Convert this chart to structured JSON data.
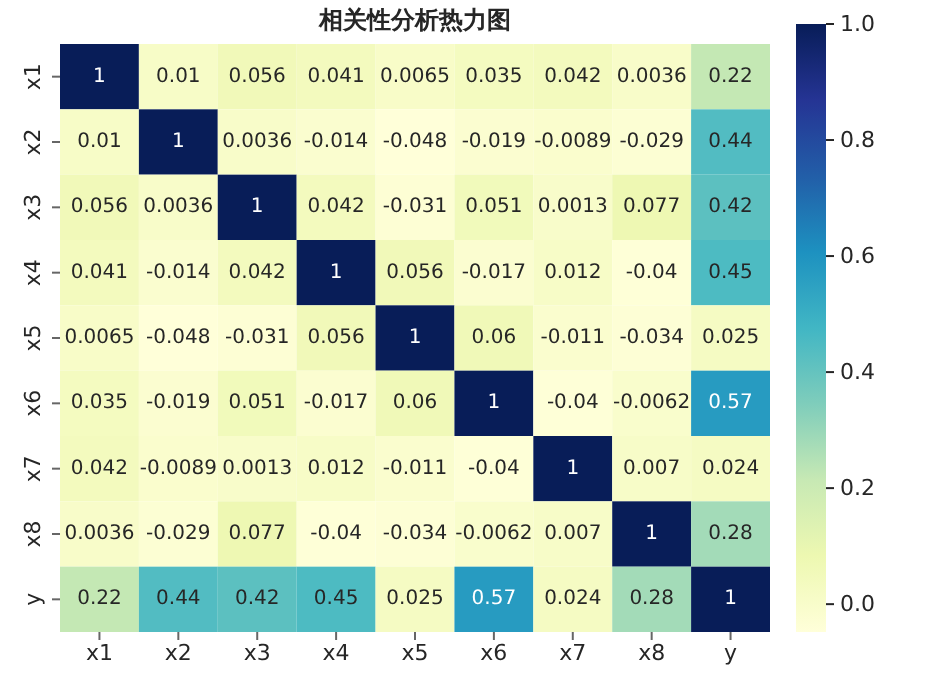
{
  "chart_data": {
    "type": "heatmap",
    "title": "相关性分析热力图",
    "categories": [
      "x1",
      "x2",
      "x3",
      "x4",
      "x5",
      "x6",
      "x7",
      "x8",
      "y"
    ],
    "y_categories": [
      "x1",
      "x2",
      "x3",
      "x4",
      "x5",
      "x6",
      "x7",
      "x8",
      "y"
    ],
    "cells": [
      [
        1,
        0.01,
        0.056,
        0.041,
        0.0065,
        0.035,
        0.042,
        0.0036,
        0.22
      ],
      [
        0.01,
        1,
        0.0036,
        -0.014,
        -0.048,
        -0.019,
        -0.0089,
        -0.029,
        0.44
      ],
      [
        0.056,
        0.0036,
        1,
        0.042,
        -0.031,
        0.051,
        0.0013,
        0.077,
        0.42
      ],
      [
        0.041,
        -0.014,
        0.042,
        1,
        0.056,
        -0.017,
        0.012,
        -0.04,
        0.45
      ],
      [
        0.0065,
        -0.048,
        -0.031,
        0.056,
        1,
        0.06,
        -0.011,
        -0.034,
        0.025
      ],
      [
        0.035,
        -0.019,
        0.051,
        -0.017,
        0.06,
        1,
        -0.04,
        -0.0062,
        0.57
      ],
      [
        0.042,
        -0.0089,
        0.0013,
        0.012,
        -0.011,
        -0.04,
        1,
        0.007,
        0.024
      ],
      [
        0.0036,
        -0.029,
        0.077,
        -0.04,
        -0.034,
        -0.0062,
        0.007,
        1,
        0.28
      ],
      [
        0.22,
        0.44,
        0.42,
        0.45,
        0.025,
        0.57,
        0.024,
        0.28,
        1
      ]
    ],
    "data_labels": true,
    "clim": [
      -0.048,
      1
    ],
    "cticks": [
      {
        "value": 0,
        "label": "0.0"
      },
      {
        "value": 0.2,
        "label": "0.2"
      },
      {
        "value": 0.4,
        "label": "0.4"
      },
      {
        "value": 0.6,
        "label": "0.6"
      },
      {
        "value": 0.8,
        "label": "0.8"
      },
      {
        "value": 1,
        "label": "1.0"
      }
    ]
  }
}
